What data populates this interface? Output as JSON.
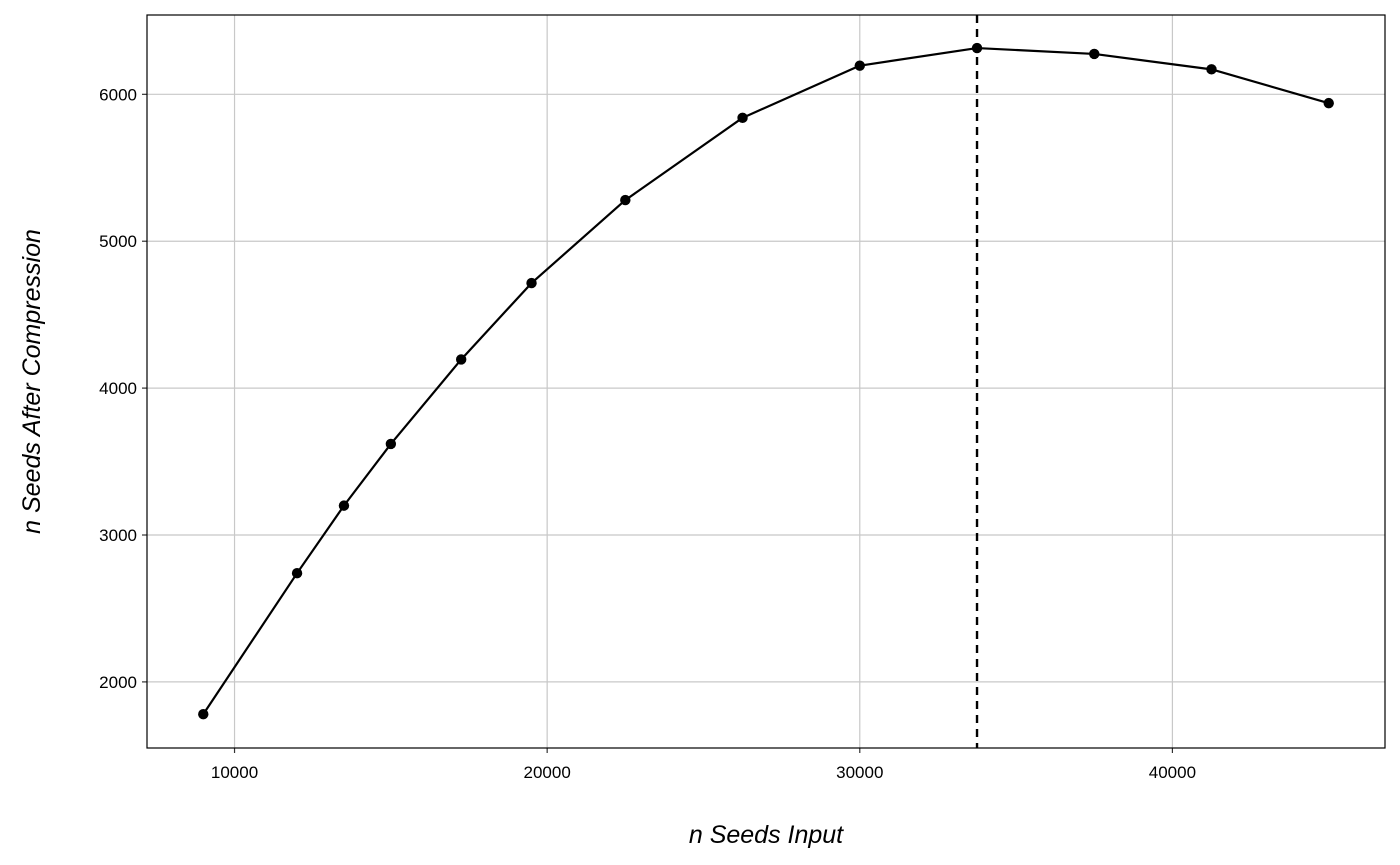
{
  "chart_data": {
    "type": "line",
    "title": "",
    "xlabel": "n Seeds Input",
    "ylabel": "n Seeds After Compression",
    "xlim": [
      7200,
      46800
    ],
    "ylim": [
      1550,
      6540
    ],
    "x_ticks": [
      10000,
      20000,
      30000,
      40000
    ],
    "y_ticks": [
      2000,
      3000,
      4000,
      5000,
      6000
    ],
    "x_tick_labels": [
      "10000",
      "20000",
      "30000",
      "40000"
    ],
    "y_tick_labels": [
      "2000",
      "3000",
      "4000",
      "5000",
      "6000"
    ],
    "grid": true,
    "legend": "none",
    "series": [
      {
        "color": "#000000",
        "points": [
          {
            "x": 9000,
            "y": 1780
          },
          {
            "x": 12000,
            "y": 2740
          },
          {
            "x": 13500,
            "y": 3200
          },
          {
            "x": 15000,
            "y": 3620
          },
          {
            "x": 17250,
            "y": 4195
          },
          {
            "x": 19500,
            "y": 4715
          },
          {
            "x": 22500,
            "y": 5280
          },
          {
            "x": 26250,
            "y": 5840
          },
          {
            "x": 30000,
            "y": 6195
          },
          {
            "x": 33750,
            "y": 6315
          },
          {
            "x": 37500,
            "y": 6275
          },
          {
            "x": 41250,
            "y": 6170
          },
          {
            "x": 45000,
            "y": 5940
          }
        ]
      }
    ],
    "reference_line": {
      "orientation": "vertical",
      "x": 33750,
      "style": "dashed",
      "color": "#000000"
    }
  }
}
